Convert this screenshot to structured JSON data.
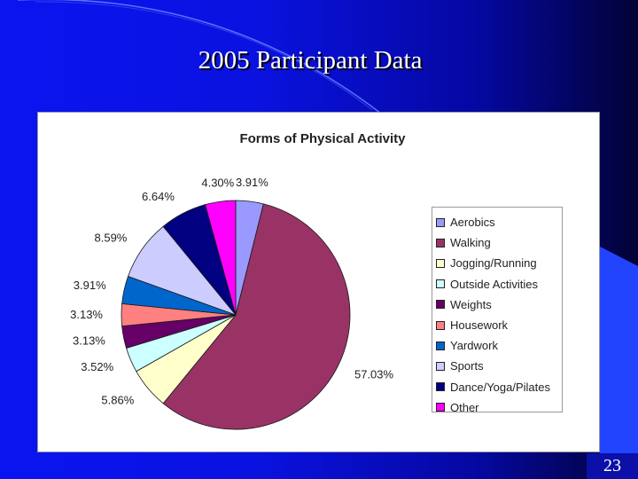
{
  "slide": {
    "title": "2005 Participant Data",
    "page_number": "23"
  },
  "chart_data": {
    "type": "pie",
    "title": "Forms of Physical Activity",
    "categories": [
      "Aerobics",
      "Walking",
      "Jogging/Running",
      "Outside Activities",
      "Weights",
      "Housework",
      "Yardwork",
      "Sports",
      "Dance/Yoga/Pilates",
      "Other"
    ],
    "values": [
      3.91,
      57.03,
      5.86,
      3.52,
      3.13,
      3.13,
      3.91,
      8.59,
      6.64,
      4.3
    ],
    "data_labels": [
      "3.91%",
      "57.03%",
      "5.86%",
      "3.52%",
      "3.13%",
      "3.13%",
      "3.91%",
      "8.59%",
      "6.64%",
      "4.30%"
    ],
    "colors": [
      "#9999ff",
      "#993366",
      "#ffffcc",
      "#ccffff",
      "#660066",
      "#ff8080",
      "#0066cc",
      "#ccccff",
      "#000080",
      "#ff00ff"
    ],
    "legend_position": "right",
    "start": "12 o'clock, clockwise"
  }
}
